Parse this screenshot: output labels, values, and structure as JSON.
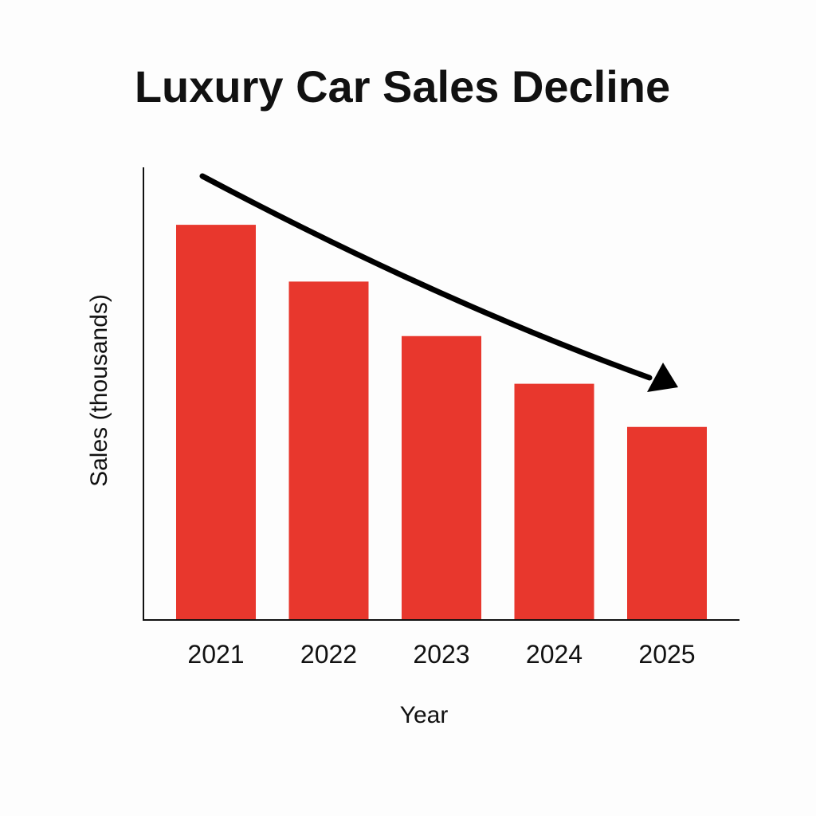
{
  "chart_data": {
    "type": "bar",
    "title": "Luxury Car Sales Decline",
    "xlabel": "Year",
    "ylabel": "Sales (thousands)",
    "categories": [
      "2021",
      "2022",
      "2023",
      "2024",
      "2025"
    ],
    "values": [
      87,
      74.5,
      62.5,
      52,
      42.5
    ],
    "ylim": [
      0,
      100
    ],
    "grid": false,
    "legend": "none",
    "annotations": [
      {
        "type": "trend-arrow",
        "direction": "downward",
        "from": "2021",
        "to": "2025"
      }
    ]
  },
  "colors": {
    "bar": "#e8372d",
    "axis": "#111111",
    "arrow": "#000000",
    "background": "#fdfdfd"
  }
}
